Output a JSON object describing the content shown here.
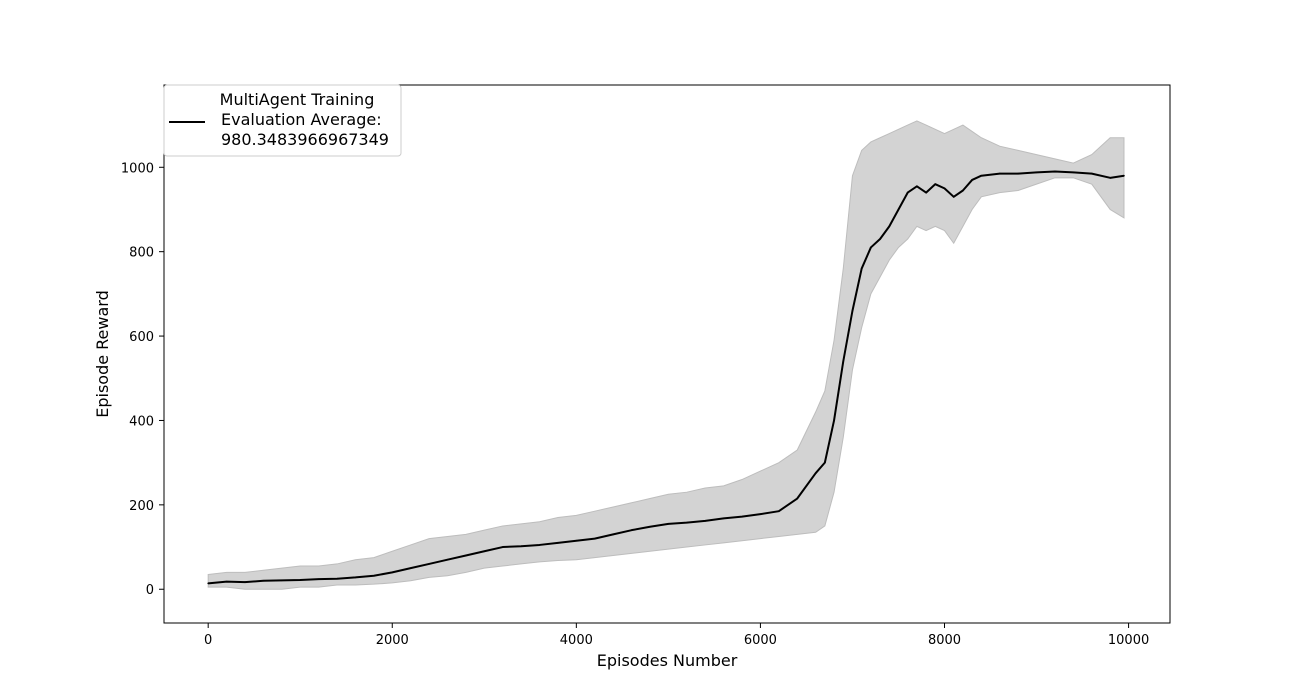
{
  "chart_data": {
    "type": "line",
    "title": "",
    "xlabel": "Episodes Number",
    "ylabel": "Episode Reward",
    "xlim": [
      -480,
      10450
    ],
    "ylim": [
      -80,
      1195
    ],
    "x_ticks": [
      0,
      2000,
      4000,
      6000,
      8000,
      10000
    ],
    "y_ticks": [
      0,
      200,
      400,
      600,
      800,
      1000
    ],
    "x_tick_labels": [
      "0",
      "2000",
      "4000",
      "6000",
      "8000",
      "10000"
    ],
    "y_tick_labels": [
      "0",
      "200",
      "400",
      "600",
      "800",
      "1000"
    ],
    "grid": false,
    "legend_position": "upper-left",
    "legend_title": "MultiAgent Training",
    "series": [
      {
        "name": "Evaluation Average:\n980.3483966967349",
        "color": "#000000",
        "band_color": "#d3d3d3",
        "x": [
          0,
          200,
          400,
          600,
          800,
          1000,
          1200,
          1400,
          1600,
          1800,
          2000,
          2200,
          2400,
          2600,
          2800,
          3000,
          3200,
          3400,
          3600,
          3800,
          4000,
          4200,
          4400,
          4600,
          4800,
          5000,
          5200,
          5400,
          5600,
          5800,
          6000,
          6200,
          6400,
          6600,
          6700,
          6800,
          6900,
          7000,
          7100,
          7200,
          7300,
          7400,
          7500,
          7600,
          7700,
          7800,
          7900,
          8000,
          8100,
          8200,
          8300,
          8400,
          8600,
          8800,
          9000,
          9200,
          9400,
          9600,
          9800,
          9950
        ],
        "y": [
          14,
          18,
          17,
          20,
          21,
          22,
          24,
          25,
          28,
          32,
          40,
          50,
          60,
          70,
          80,
          90,
          100,
          102,
          105,
          110,
          115,
          120,
          130,
          140,
          148,
          155,
          158,
          162,
          168,
          172,
          178,
          185,
          215,
          275,
          300,
          400,
          540,
          660,
          760,
          810,
          830,
          860,
          900,
          940,
          955,
          940,
          960,
          950,
          930,
          945,
          970,
          980,
          985,
          985,
          988,
          990,
          988,
          985,
          975,
          980
        ],
        "lower": [
          5,
          5,
          0,
          0,
          0,
          5,
          5,
          10,
          10,
          12,
          15,
          20,
          28,
          32,
          40,
          50,
          55,
          60,
          65,
          68,
          70,
          75,
          80,
          85,
          90,
          95,
          100,
          105,
          110,
          115,
          120,
          125,
          130,
          135,
          150,
          230,
          360,
          520,
          620,
          700,
          740,
          780,
          810,
          830,
          860,
          850,
          860,
          850,
          820,
          860,
          900,
          930,
          940,
          945,
          960,
          975,
          975,
          960,
          900,
          880
        ],
        "upper": [
          35,
          40,
          40,
          45,
          50,
          55,
          55,
          60,
          70,
          75,
          90,
          105,
          120,
          125,
          130,
          140,
          150,
          155,
          160,
          170,
          175,
          185,
          195,
          205,
          215,
          225,
          230,
          240,
          245,
          260,
          280,
          300,
          330,
          420,
          470,
          590,
          760,
          980,
          1040,
          1060,
          1070,
          1080,
          1090,
          1100,
          1110,
          1100,
          1090,
          1080,
          1090,
          1100,
          1085,
          1070,
          1050,
          1040,
          1030,
          1020,
          1010,
          1030,
          1070,
          1070
        ]
      }
    ]
  }
}
